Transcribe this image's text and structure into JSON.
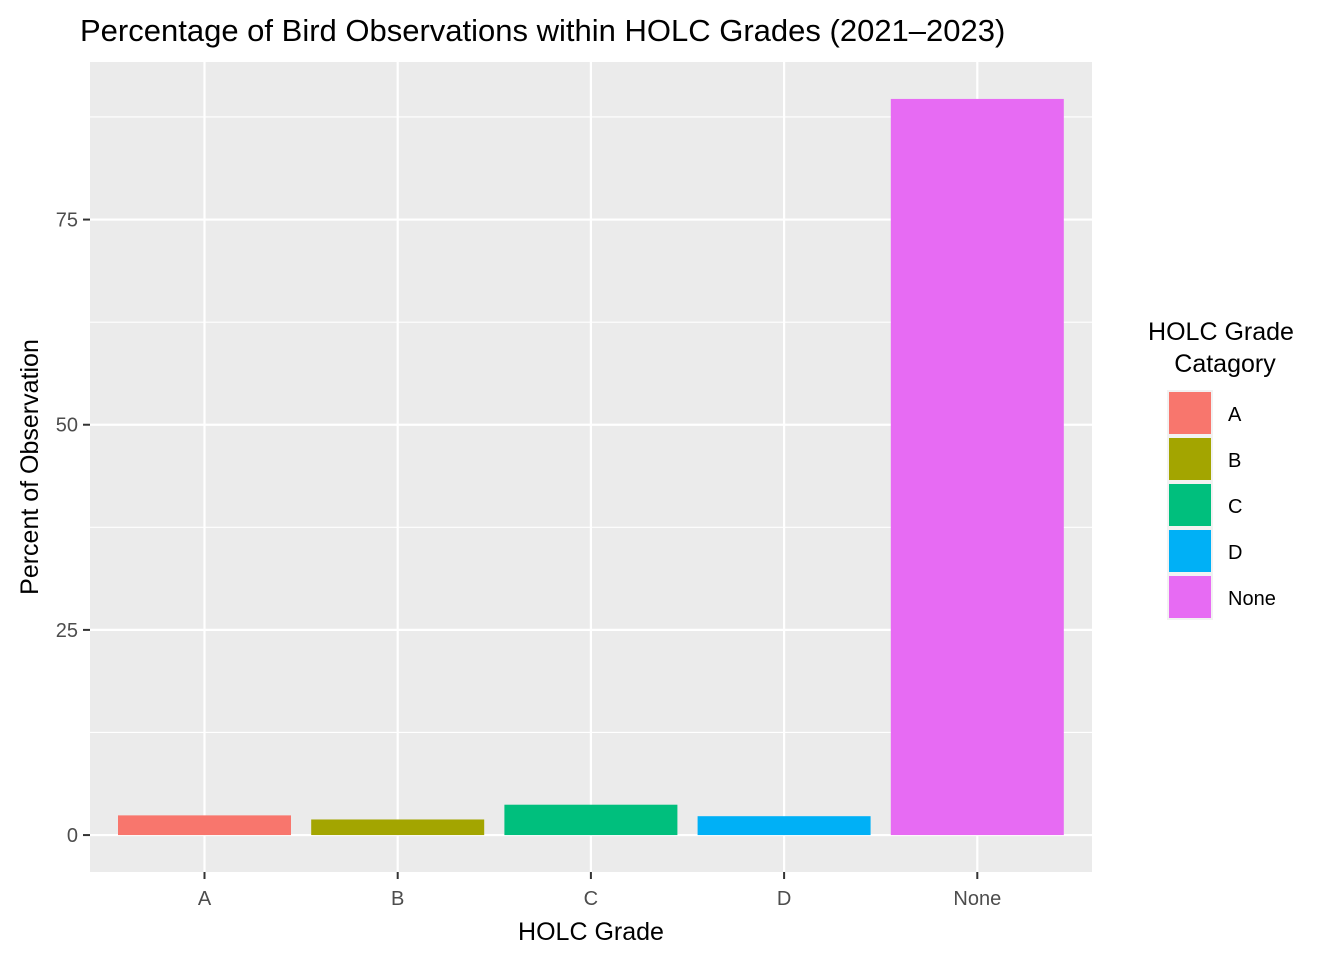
{
  "chart_data": {
    "type": "bar",
    "title": "Percentage of Bird Observations within HOLC Grades (2021–2023)",
    "xlabel": "HOLC Grade",
    "ylabel": "Percent of Observation",
    "categories": [
      "A",
      "B",
      "C",
      "D",
      "None"
    ],
    "values": [
      2.4,
      1.9,
      3.7,
      2.3,
      89.7
    ],
    "colors": [
      "#F8766D",
      "#A3A500",
      "#00BF7D",
      "#00B0F6",
      "#E76BF3"
    ],
    "ylim": [
      -4.5,
      94.2
    ],
    "yticks": [
      0,
      25,
      50,
      75
    ],
    "grid": true,
    "panel_background": "#EBEBEB",
    "grid_color": "#FFFFFF",
    "legend": {
      "title_lines": [
        "HOLC Grade",
        "Catagory"
      ],
      "position": "right",
      "entries": [
        "A",
        "B",
        "C",
        "D",
        "None"
      ]
    }
  }
}
